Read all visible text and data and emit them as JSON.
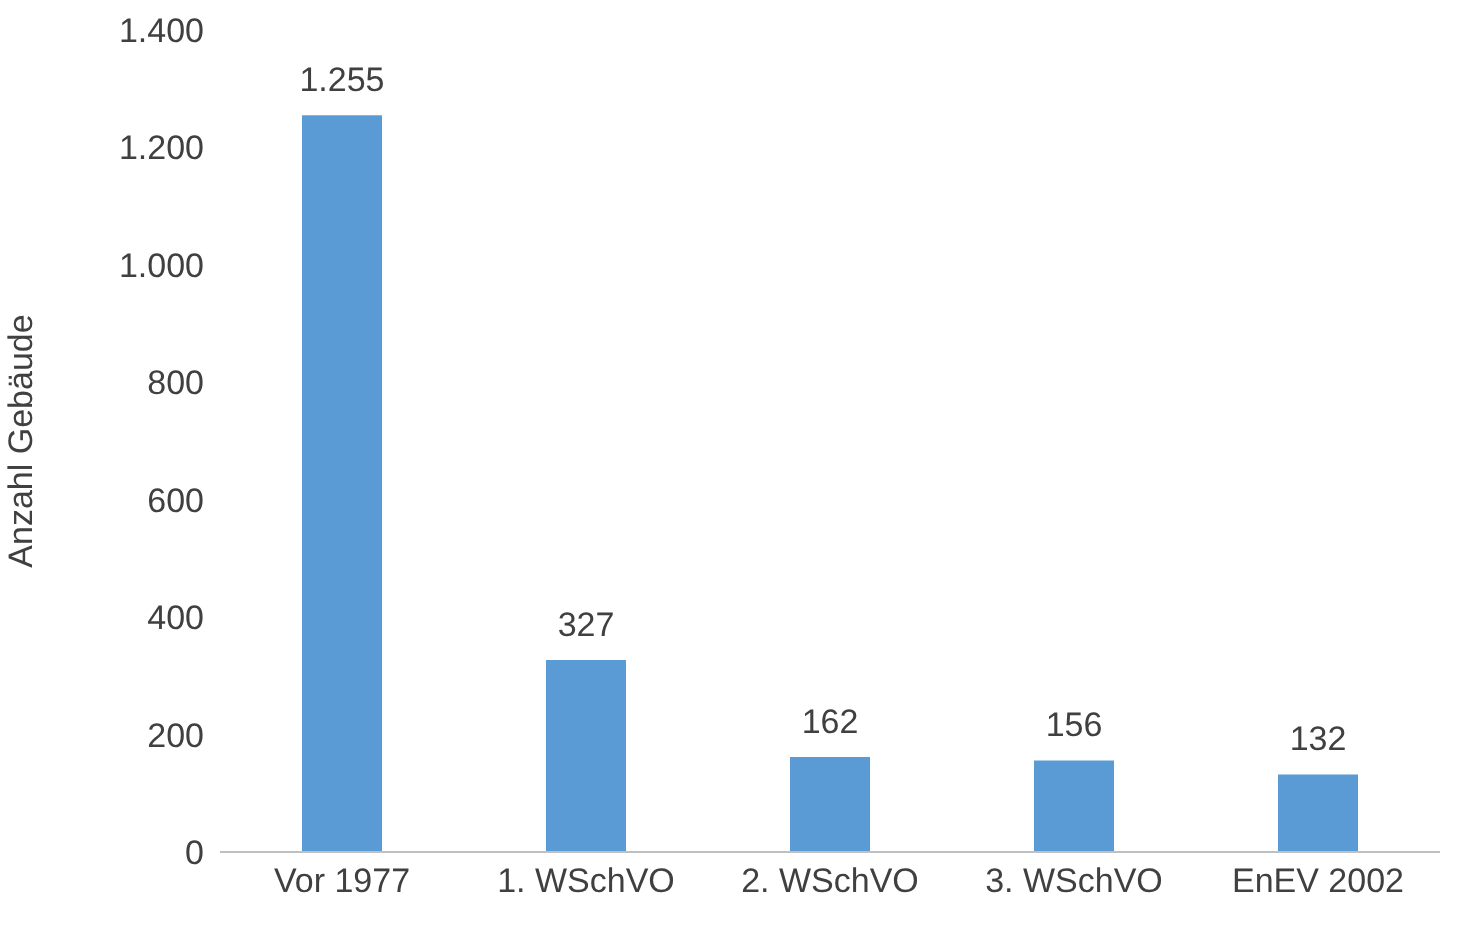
{
  "chart_data": {
    "type": "bar",
    "ylabel": "Anzahl Gebäude",
    "categories": [
      "Vor 1977",
      "1. WSchVO",
      "2. WSchVO",
      "3. WSchVO",
      "EnEV 2002"
    ],
    "values": [
      1255,
      327,
      162,
      156,
      132
    ],
    "value_labels": [
      "1.255",
      "327",
      "162",
      "156",
      "132"
    ],
    "color": "#5b9bd5",
    "ylim": [
      0,
      1400
    ],
    "yticks": [
      0,
      200,
      400,
      600,
      800,
      {
        "value": 1000,
        "label": "1.000"
      },
      {
        "value": 1200,
        "label": "1.200"
      },
      {
        "value": 1400,
        "label": "1.400"
      }
    ]
  }
}
